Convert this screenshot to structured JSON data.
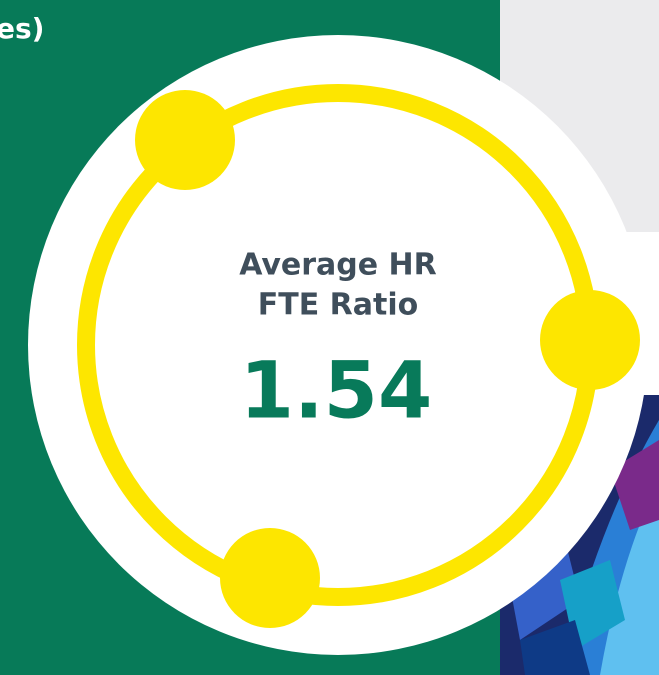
{
  "header_fragment": "es)",
  "stat": {
    "label_lines": [
      "Average HR",
      "FTE Ratio"
    ],
    "value": 1.54
  }
}
